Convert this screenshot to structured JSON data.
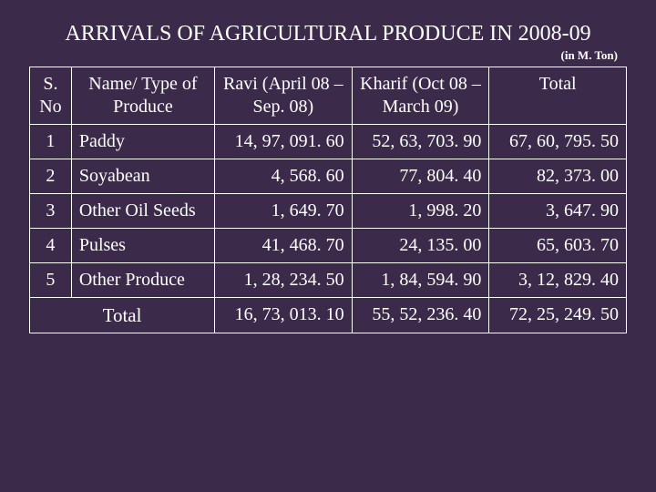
{
  "title": "ARRIVALS OF AGRICULTURAL PRODUCE IN 2008-09",
  "unit_label": "(in M. Ton)",
  "columns": {
    "sno": "S. No",
    "name": "Name/ Type of Produce",
    "ravi": "Ravi\n(April 08 – Sep. 08)",
    "kharif": "Kharif\n(Oct 08 – March 09)",
    "total": "Total"
  },
  "rows": [
    {
      "sno": "1",
      "name": "Paddy",
      "ravi": "14, 97, 091. 60",
      "kharif": "52, 63, 703. 90",
      "total": "67, 60, 795. 50"
    },
    {
      "sno": "2",
      "name": "Soyabean",
      "ravi": "4, 568. 60",
      "kharif": "77, 804. 40",
      "total": "82, 373. 00"
    },
    {
      "sno": "3",
      "name": "Other Oil Seeds",
      "ravi": "1, 649. 70",
      "kharif": "1, 998. 20",
      "total": "3, 647. 90"
    },
    {
      "sno": "4",
      "name": "Pulses",
      "ravi": "41, 468. 70",
      "kharif": "24, 135. 00",
      "total": "65, 603. 70"
    },
    {
      "sno": "5",
      "name": "Other Produce",
      "ravi": "1, 28, 234. 50",
      "kharif": "1, 84, 594. 90",
      "total": "3, 12, 829. 40"
    }
  ],
  "totals_row": {
    "label": "Total",
    "ravi": "16, 73, 013. 10",
    "kharif": "55, 52, 236. 40",
    "total": "72, 25, 249. 50"
  },
  "style": {
    "background_color": "#3b2a4a",
    "text_color": "#ffffff",
    "border_color": "#ffffff",
    "font_family": "Times New Roman",
    "title_fontsize": 24,
    "unit_fontsize": 13,
    "cell_fontsize": 20,
    "column_widths_pct": [
      7,
      24,
      23,
      23,
      23
    ]
  }
}
